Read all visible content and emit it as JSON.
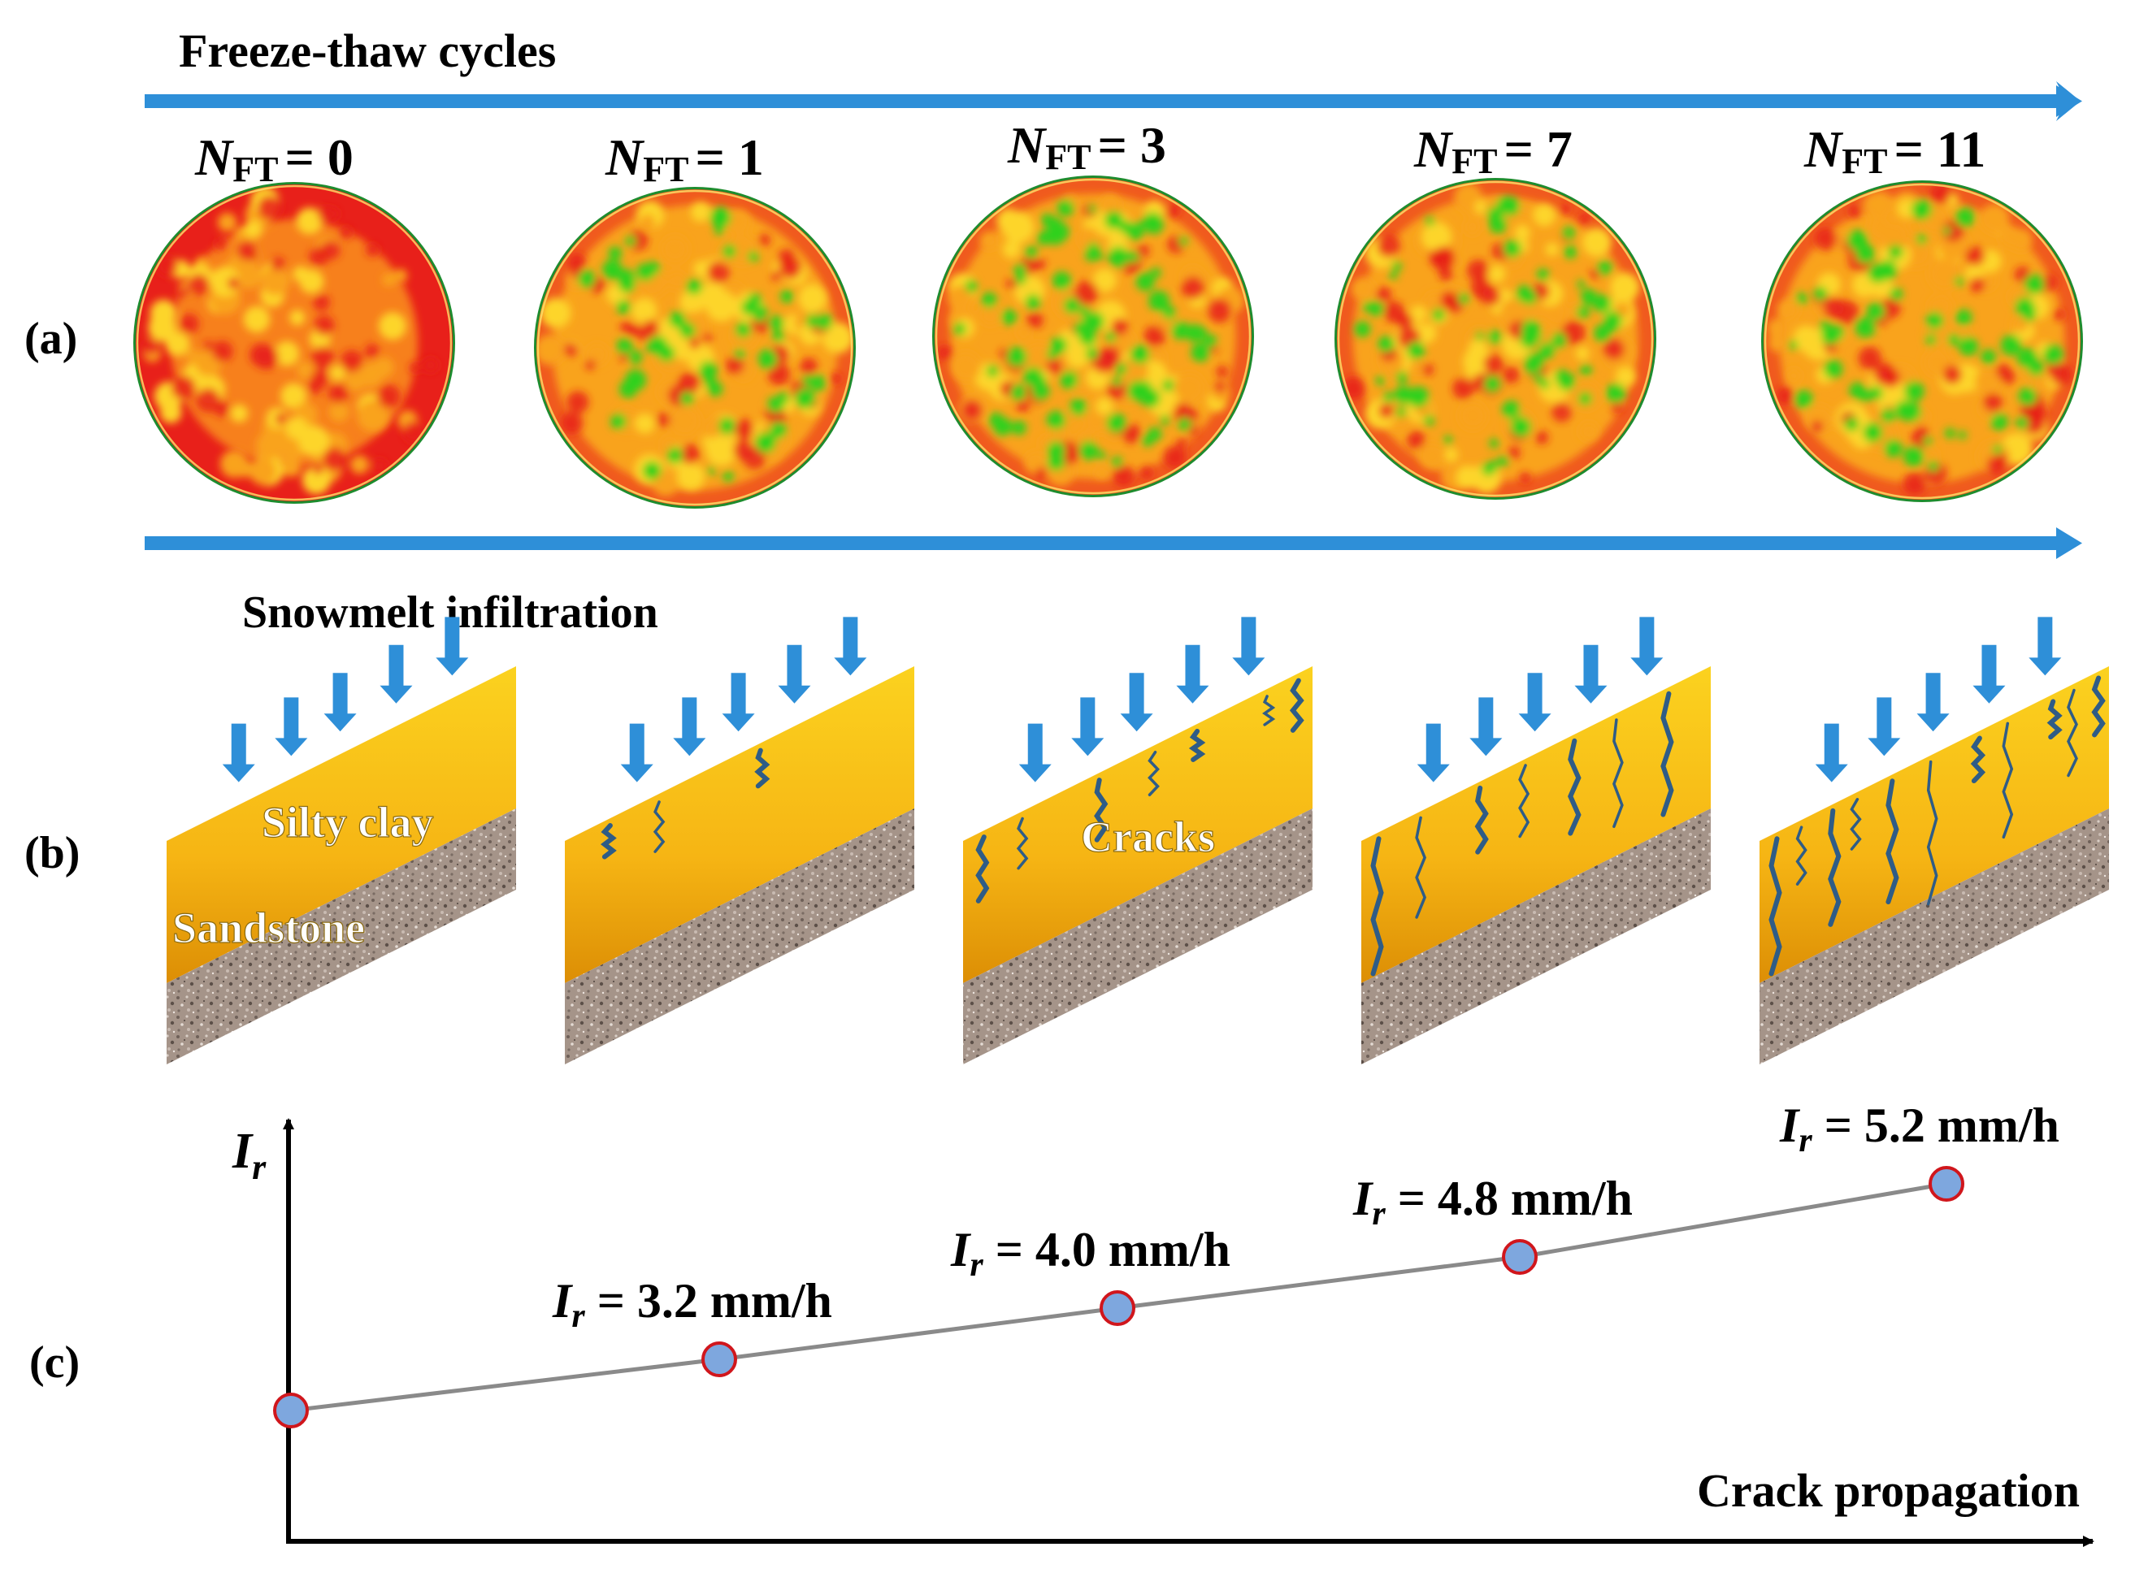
{
  "header": {
    "title": "Freeze-thaw cycles"
  },
  "panels": {
    "a": {
      "label": "(a)"
    },
    "b": {
      "label": "(b)",
      "title": "Snowmelt infiltration",
      "silty_clay_label": "Silty clay",
      "sandstone_label": "Sandstone",
      "cracks_label": "Cracks"
    },
    "c": {
      "label": "(c)",
      "y_axis_label": "I",
      "y_axis_sub": "r",
      "x_axis_label": "Crack propagation"
    }
  },
  "stages": [
    {
      "n_symbol": "N",
      "n_sub": "FT",
      "n_value": "= 0"
    },
    {
      "n_symbol": "N",
      "n_sub": "FT",
      "n_value": "= 1"
    },
    {
      "n_symbol": "N",
      "n_sub": "FT",
      "n_value": "= 3"
    },
    {
      "n_symbol": "N",
      "n_sub": "FT",
      "n_value": "= 7"
    },
    {
      "n_symbol": "N",
      "n_sub": "FT",
      "n_value": "= 11"
    }
  ],
  "chart_data": {
    "type": "line",
    "title": "",
    "xlabel": "Crack propagation",
    "ylabel": "I_r",
    "x": [
      0,
      1,
      2,
      3,
      4
    ],
    "values": [
      2.2,
      3.2,
      4.0,
      4.8,
      5.2
    ],
    "labels": [
      "",
      "I_r = 3.2 mm/h",
      "I_r = 4.0 mm/h",
      "I_r = 4.8 mm/h",
      "I_r = 5.2 mm/h"
    ],
    "point_labels": [
      {
        "sym": "I",
        "sub": "r",
        "text": ""
      },
      {
        "sym": "I",
        "sub": "r",
        "text": " = 3.2 mm/h"
      },
      {
        "sym": "I",
        "sub": "r",
        "text": " = 4.0 mm/h"
      },
      {
        "sym": "I",
        "sub": "r",
        "text": " = 4.8 mm/h"
      },
      {
        "sym": "I",
        "sub": "r",
        "text": " = 5.2 mm/h"
      }
    ],
    "ylim": [
      0,
      6
    ]
  },
  "colors": {
    "arrow": "#2E8FD8",
    "red": "#E8201A",
    "orange": "#F9A31C",
    "green": "#2FD11F",
    "clay_top": "#F9C918",
    "clay_bottom": "#E59A06",
    "crack": "#2F5C86",
    "sandstone": "#A08E84",
    "point_fill": "#7EA7DE",
    "point_stroke": "#D0161C",
    "line": "#8A8A8A"
  }
}
